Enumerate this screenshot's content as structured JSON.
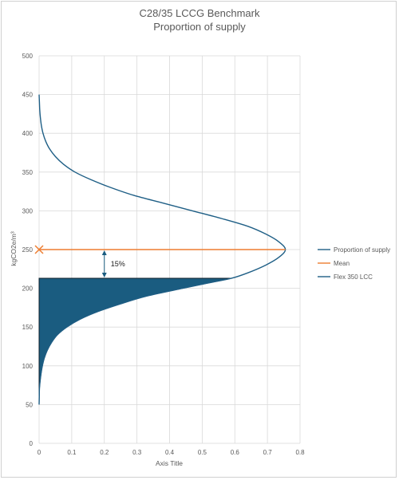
{
  "chart_data": {
    "type": "line",
    "title": "C28/35 LCCG Benchmark",
    "subtitle": "Proportion of supply",
    "xlabel": "Axis Title",
    "ylabel": "kgCO2e/m³",
    "xlim": [
      0,
      0.8
    ],
    "ylim": [
      0,
      500
    ],
    "xticks": [
      0,
      0.1,
      0.2,
      0.3,
      0.4,
      0.5,
      0.6,
      0.7,
      0.8
    ],
    "yticks": [
      0,
      50,
      100,
      150,
      200,
      250,
      300,
      350,
      400,
      450,
      500
    ],
    "grid": true,
    "legend_position": "right",
    "series": [
      {
        "name": "Proportion of supply",
        "color": "#1f5f86",
        "points": [
          [
            0.0,
            50
          ],
          [
            0.0005,
            60
          ],
          [
            0.001,
            70
          ],
          [
            0.003,
            80
          ],
          [
            0.006,
            90
          ],
          [
            0.01,
            100
          ],
          [
            0.016,
            110
          ],
          [
            0.025,
            120
          ],
          [
            0.038,
            130
          ],
          [
            0.056,
            140
          ],
          [
            0.085,
            150
          ],
          [
            0.125,
            160
          ],
          [
            0.18,
            170
          ],
          [
            0.25,
            180
          ],
          [
            0.33,
            190
          ],
          [
            0.44,
            200
          ],
          [
            0.52,
            207
          ],
          [
            0.59,
            213
          ],
          [
            0.64,
            220
          ],
          [
            0.695,
            230
          ],
          [
            0.735,
            240
          ],
          [
            0.755,
            250
          ],
          [
            0.735,
            260
          ],
          [
            0.695,
            270
          ],
          [
            0.64,
            280
          ],
          [
            0.56,
            290
          ],
          [
            0.47,
            300
          ],
          [
            0.38,
            310
          ],
          [
            0.29,
            320
          ],
          [
            0.22,
            330
          ],
          [
            0.16,
            340
          ],
          [
            0.11,
            350
          ],
          [
            0.075,
            360
          ],
          [
            0.05,
            370
          ],
          [
            0.032,
            380
          ],
          [
            0.02,
            390
          ],
          [
            0.012,
            400
          ],
          [
            0.007,
            410
          ],
          [
            0.004,
            420
          ],
          [
            0.002,
            430
          ],
          [
            0.001,
            440
          ],
          [
            0.0,
            450
          ]
        ]
      },
      {
        "name": "Mean",
        "color": "#ed7d31",
        "points": [
          [
            0,
            250
          ],
          [
            0.755,
            250
          ]
        ]
      },
      {
        "name": "Flex 350 LCC",
        "color": "#1f5f86",
        "value": 213
      }
    ],
    "annotations": [
      {
        "text": "15%",
        "x": 0.2,
        "y_from": 213,
        "y_to": 250
      }
    ]
  }
}
